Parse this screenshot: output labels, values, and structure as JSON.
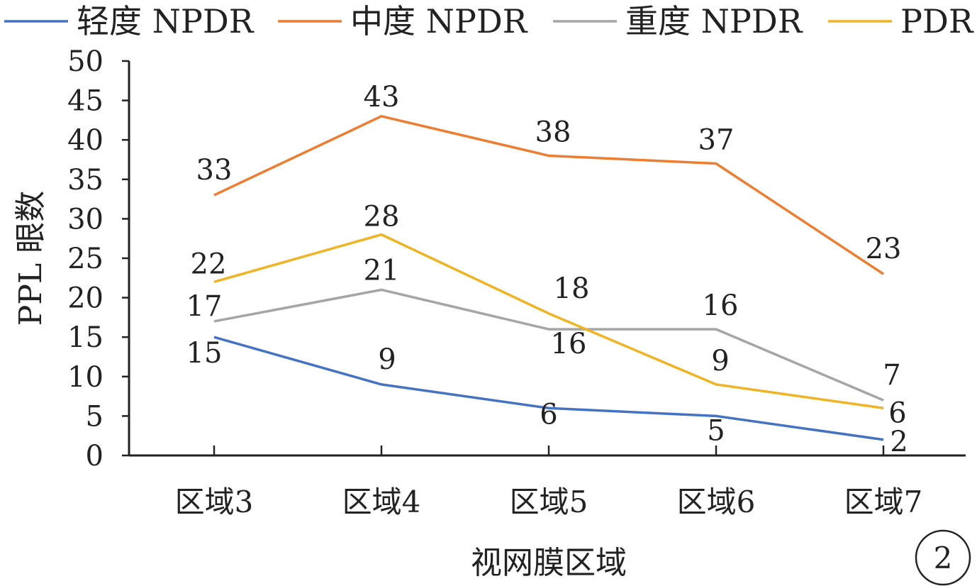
{
  "chart_data": {
    "type": "line",
    "categories": [
      "区域3",
      "区域4",
      "区域5",
      "区域6",
      "区域7"
    ],
    "series": [
      {
        "name": "轻度 NPDR",
        "color": "#4472C4",
        "values": [
          15,
          9,
          6,
          5,
          2
        ]
      },
      {
        "name": "中度 NPDR",
        "color": "#ED7D31",
        "values": [
          33,
          43,
          38,
          37,
          23
        ]
      },
      {
        "name": "重度 NPDR",
        "color": "#A5A5A5",
        "values": [
          17,
          21,
          16,
          16,
          7
        ]
      },
      {
        "name": "PDR",
        "color": "#F0B323",
        "values": [
          22,
          28,
          18,
          9,
          6
        ]
      }
    ],
    "xlabel": "视网膜区域",
    "ylabel": "PPL 眼数",
    "ylim": [
      0,
      50
    ],
    "yticks": [
      0,
      5,
      10,
      15,
      20,
      25,
      30,
      35,
      40,
      45,
      50
    ],
    "grid": false,
    "legend": "top"
  },
  "badge": "2"
}
